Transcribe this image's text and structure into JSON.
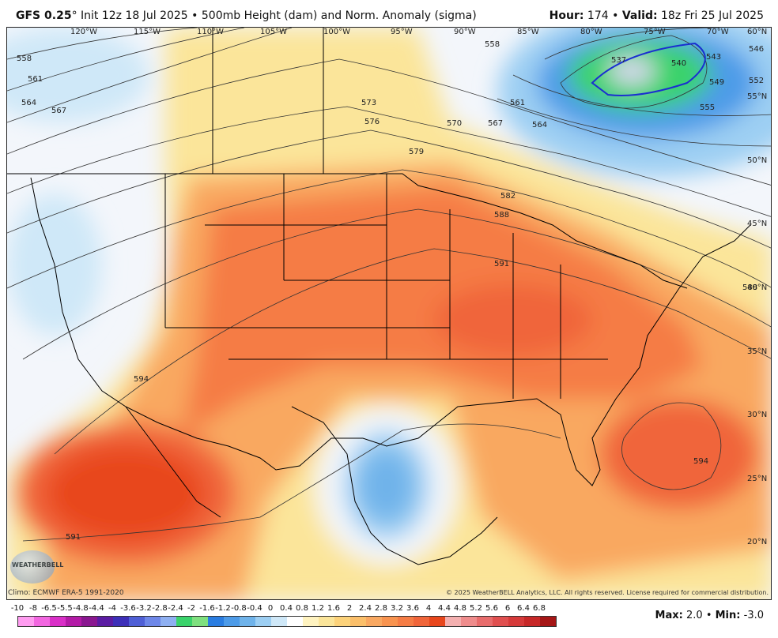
{
  "header": {
    "model": "GFS 0.25",
    "degree_symbol": "°",
    "init_text": "Init 12z 18 Jul 2025",
    "bullet": "•",
    "title_text": "500mb Height (dam) and Norm. Anomaly (sigma)",
    "hour_label": "Hour:",
    "hour_value": "174",
    "valid_label": "Valid:",
    "valid_value": "18z Fri 25 Jul 2025"
  },
  "map": {
    "longitude_labels": [
      "120°W",
      "115°W",
      "110°W",
      "105°W",
      "100°W",
      "95°W",
      "90°W",
      "85°W",
      "80°W",
      "75°W",
      "70°W",
      "60°N"
    ],
    "latitude_labels": [
      "55°N",
      "50°N",
      "45°N",
      "40°N",
      "35°N",
      "30°N",
      "25°N",
      "20°N"
    ],
    "contour_labels": [
      "558",
      "561",
      "564",
      "567",
      "573",
      "576",
      "570",
      "567",
      "564",
      "561",
      "558",
      "579",
      "582",
      "588",
      "591",
      "594",
      "594",
      "591",
      "537",
      "540",
      "543",
      "546",
      "549",
      "552",
      "555",
      "588"
    ],
    "colors": {
      "strong_positive": "#e8461c",
      "positive": "#f57c45",
      "weak_positive": "#f9a861",
      "slight_positive": "#fbe59a",
      "neutral": "#f3f6fb",
      "slight_negative": "#cfe8f8",
      "negative": "#6fb3ea",
      "strong_negative": "#2a7de1",
      "very_negative": "#3ad36b"
    }
  },
  "footer": {
    "climo": "Climo: ECMWF ERA-5 1991-2020",
    "copyright": "© 2025 WeatherBELL Analytics, LLC. All rights reserved. License required for commercial distribution.",
    "logo_text": "WEATHERBELL"
  },
  "colorbar": {
    "labels": [
      "-10",
      "-8",
      "-6.5",
      "-5.5",
      "-4.8",
      "-4.4",
      "-4",
      "-3.6",
      "-3.2",
      "-2.8",
      "-2.4",
      "-2",
      "-1.6",
      "-1.2",
      "-0.8",
      "-0.4",
      "0",
      "0.4",
      "0.8",
      "1.2",
      "1.6",
      "2",
      "2.4",
      "2.8",
      "3.2",
      "3.6",
      "4",
      "4.4",
      "4.8",
      "5.2",
      "5.6",
      "6",
      "6.4",
      "6.8"
    ],
    "colors": [
      "#ff9cf0",
      "#f266e0",
      "#d92fc7",
      "#b31aa6",
      "#8a1790",
      "#5b1ca3",
      "#3d2fb8",
      "#4f5fd6",
      "#6e87e8",
      "#8fb0f2",
      "#3ad36b",
      "#7fe07f",
      "#2a7de1",
      "#4d9be8",
      "#6fb3ea",
      "#9dcff3",
      "#cfe8f8",
      "#ffffff",
      "#fff3c0",
      "#fbe59a",
      "#fcd27a",
      "#fbbf6a",
      "#f9a861",
      "#f8934f",
      "#f57c45",
      "#f0653a",
      "#e8461c",
      "#f4b0b0",
      "#ef8c8c",
      "#e86c6c",
      "#e04f4f",
      "#d63a3a",
      "#c72828",
      "#a51616"
    ]
  },
  "stats": {
    "max_label": "Max:",
    "max_value": "2.0",
    "min_label": "Min:",
    "min_value": "-3.0"
  }
}
